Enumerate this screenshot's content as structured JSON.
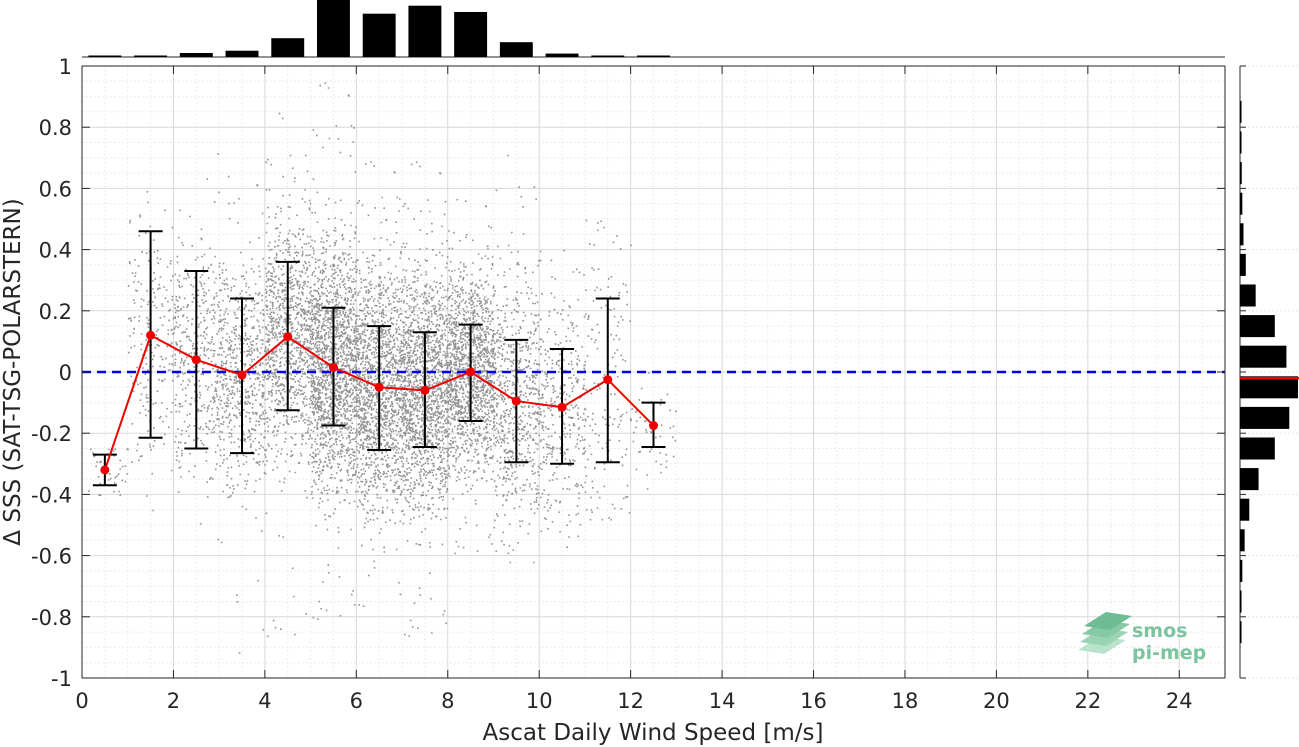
{
  "chart_data": {
    "type": "scatter",
    "xlabel": "Ascat Daily Wind Speed [m/s]",
    "ylabel": "Δ SSS (SAT-TSG-POLARSTERN)",
    "xlim": [
      0,
      25
    ],
    "ylim": [
      -1,
      1
    ],
    "x_ticks": [
      "0",
      "2",
      "4",
      "6",
      "8",
      "10",
      "12",
      "14",
      "16",
      "18",
      "20",
      "22",
      "24"
    ],
    "y_ticks": [
      "1",
      "0.8",
      "0.6",
      "0.4",
      "0.2",
      "0",
      "-0.2",
      "-0.4",
      "-0.6",
      "-0.8",
      "-1"
    ],
    "grid": true,
    "reference_line": {
      "y": 0,
      "style": "dashed",
      "color": "#0000ee"
    },
    "binned_mean": {
      "x": [
        0.5,
        1.5,
        2.5,
        3.5,
        4.5,
        5.5,
        6.5,
        7.5,
        8.5,
        9.5,
        10.5,
        11.5,
        12.5
      ],
      "mean": [
        -0.32,
        0.12,
        0.04,
        -0.01,
        0.115,
        0.015,
        -0.05,
        -0.06,
        0.0,
        -0.095,
        -0.115,
        -0.025,
        -0.175
      ],
      "std_low": [
        -0.37,
        -0.215,
        -0.25,
        -0.265,
        -0.125,
        -0.175,
        -0.255,
        -0.245,
        -0.16,
        -0.295,
        -0.3,
        -0.295,
        -0.245
      ],
      "std_high": [
        -0.27,
        0.46,
        0.33,
        0.24,
        0.36,
        0.21,
        0.15,
        0.13,
        0.155,
        0.105,
        0.075,
        0.24,
        -0.1
      ],
      "line_color": "#ee0000",
      "errorbar_color": "#000000"
    },
    "scatter_cloud": {
      "color": "#808080",
      "bins": [
        {
          "x": [
            0.0,
            1.0
          ],
          "center": -0.32,
          "spread": 0.05,
          "min": -0.4,
          "max": -0.25,
          "n": 40
        },
        {
          "x": [
            1.0,
            2.0
          ],
          "center": 0.12,
          "spread": 0.2,
          "min": -0.45,
          "max": 0.86,
          "n": 220
        },
        {
          "x": [
            2.0,
            3.0
          ],
          "center": 0.04,
          "spread": 0.19,
          "min": -0.63,
          "max": 0.75,
          "n": 420
        },
        {
          "x": [
            3.0,
            4.0
          ],
          "center": -0.01,
          "spread": 0.18,
          "min": -0.92,
          "max": 0.66,
          "n": 620
        },
        {
          "x": [
            4.0,
            5.0
          ],
          "center": 0.115,
          "spread": 0.19,
          "min": -0.91,
          "max": 0.86,
          "n": 1000
        },
        {
          "x": [
            5.0,
            6.0
          ],
          "center": 0.015,
          "spread": 0.2,
          "min": -0.85,
          "max": 0.96,
          "n": 1700
        },
        {
          "x": [
            6.0,
            7.0
          ],
          "center": -0.05,
          "spread": 0.2,
          "min": -0.8,
          "max": 0.7,
          "n": 1450
        },
        {
          "x": [
            7.0,
            8.0
          ],
          "center": -0.06,
          "spread": 0.19,
          "min": -0.9,
          "max": 0.7,
          "n": 1550
        },
        {
          "x": [
            8.0,
            9.0
          ],
          "center": 0.0,
          "spread": 0.16,
          "min": -0.62,
          "max": 0.58,
          "n": 1400
        },
        {
          "x": [
            9.0,
            10.0
          ],
          "center": -0.095,
          "spread": 0.2,
          "min": -0.62,
          "max": 0.72,
          "n": 650
        },
        {
          "x": [
            10.0,
            11.0
          ],
          "center": -0.115,
          "spread": 0.19,
          "min": -0.57,
          "max": 0.5,
          "n": 360
        },
        {
          "x": [
            11.0,
            12.0
          ],
          "center": -0.025,
          "spread": 0.25,
          "min": -0.48,
          "max": 0.5,
          "n": 150
        },
        {
          "x": [
            12.0,
            13.0
          ],
          "center": -0.175,
          "spread": 0.1,
          "min": -0.45,
          "max": 0.0,
          "n": 50
        }
      ]
    },
    "top_histogram": {
      "bins_x": [
        0.5,
        1.5,
        2.5,
        3.5,
        4.5,
        5.5,
        6.5,
        7.5,
        8.5,
        9.5,
        10.5,
        11.5,
        12.5
      ],
      "relative_heights": [
        0.02,
        0.02,
        0.07,
        0.11,
        0.33,
        1.0,
        0.76,
        0.9,
        0.79,
        0.26,
        0.06,
        0.02,
        0.02
      ]
    },
    "right_histogram": {
      "bins_y": [
        0.85,
        0.75,
        0.65,
        0.55,
        0.45,
        0.35,
        0.25,
        0.15,
        0.05,
        -0.05,
        -0.15,
        -0.25,
        -0.35,
        -0.45,
        -0.55,
        -0.65,
        -0.75,
        -0.85
      ],
      "relative_widths": [
        0.01,
        0.02,
        0.03,
        0.04,
        0.06,
        0.1,
        0.27,
        0.6,
        0.8,
        1.0,
        0.85,
        0.6,
        0.32,
        0.16,
        0.08,
        0.04,
        0.02,
        0.01
      ],
      "median_marker": -0.02,
      "median_color": "#ee0000"
    }
  },
  "logo": {
    "line1": "smos",
    "line2": "pi-mep",
    "icon": "smos-layers-icon",
    "color": "#7cc4a0"
  }
}
